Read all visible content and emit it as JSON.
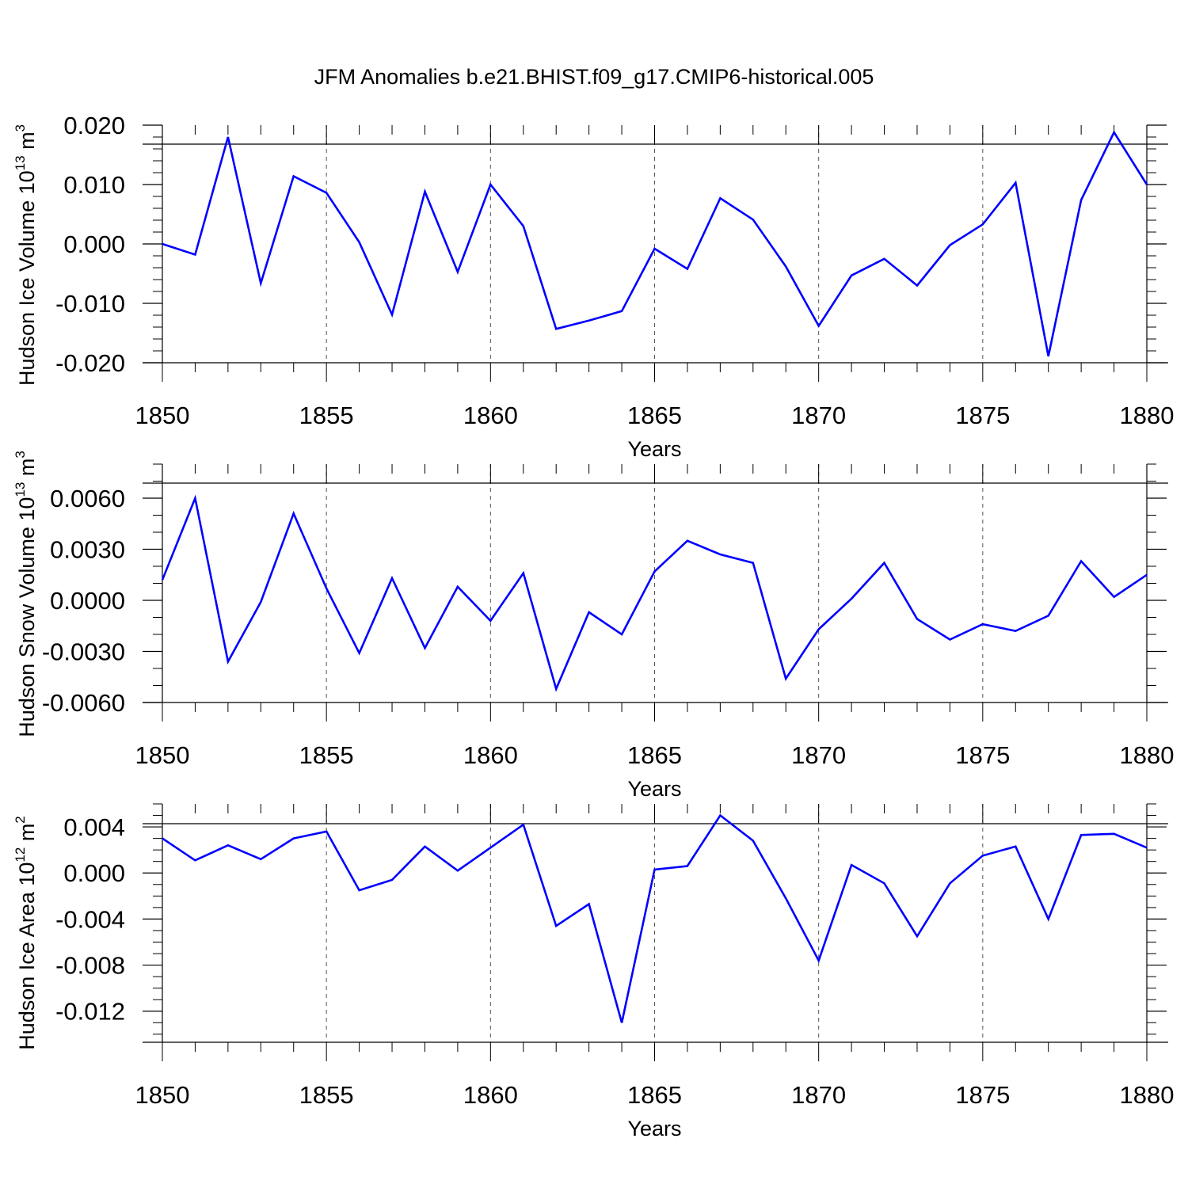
{
  "title": "JFM Anomalies b.e21.BHIST.f09_g17.CMIP6-historical.005",
  "line_color": "#0000ff",
  "chart_data": [
    {
      "type": "line",
      "xlabel": "Years",
      "ylabel": {
        "text": "Hudson Ice Volume 10",
        "sup": "13",
        "unit": " m",
        "unit_sup": "3"
      },
      "xlim": [
        1850,
        1880
      ],
      "ylim": [
        -0.02,
        0.02
      ],
      "xticks": [
        1850,
        1855,
        1860,
        1865,
        1870,
        1875,
        1880
      ],
      "xtick_labels": [
        "1850",
        "1855",
        "1860",
        "1865",
        "1870",
        "1875",
        "1880"
      ],
      "yticks": [
        0.02,
        0.01,
        0.0,
        -0.01,
        -0.02
      ],
      "ytick_labels": [
        "0.020",
        "0.010",
        "0.000",
        "-0.010",
        "-0.020"
      ],
      "y_minor_step": 0.002,
      "series": [
        {
          "x": [
            1850,
            1851,
            1852,
            1853,
            1854,
            1855,
            1856,
            1857,
            1858,
            1859,
            1860,
            1861,
            1862,
            1863,
            1864,
            1865,
            1866,
            1867,
            1868,
            1869,
            1870,
            1871,
            1872,
            1873,
            1874,
            1875,
            1876,
            1877,
            1878,
            1879,
            1880
          ],
          "values": [
            0.0,
            -0.0018,
            0.018,
            -0.0066,
            0.0114,
            0.0086,
            0.0003,
            -0.0119,
            0.0088,
            -0.0047,
            0.01,
            0.003,
            -0.0143,
            -0.0129,
            -0.0113,
            -0.0008,
            -0.0042,
            0.0077,
            0.0041,
            -0.0038,
            -0.0138,
            -0.0053,
            -0.0025,
            -0.007,
            -0.0002,
            0.0033,
            0.0103,
            -0.0189,
            0.0074,
            0.0188,
            0.01
          ]
        }
      ]
    },
    {
      "type": "line",
      "xlabel": "Years",
      "ylabel": {
        "text": "Hudson Snow Volume 10",
        "sup": "13",
        "unit": " m",
        "unit_sup": "3"
      },
      "xlim": [
        1850,
        1880
      ],
      "ylim": [
        -0.006,
        0.008
      ],
      "xticks": [
        1850,
        1855,
        1860,
        1865,
        1870,
        1875,
        1880
      ],
      "xtick_labels": [
        "1850",
        "1855",
        "1860",
        "1865",
        "1870",
        "1875",
        "1880"
      ],
      "yticks": [
        0.006,
        0.003,
        0.0,
        -0.003,
        -0.006
      ],
      "ytick_labels": [
        "0.0060",
        "0.0030",
        "0.0000",
        "-0.0030",
        "-0.0060"
      ],
      "y_minor_step": 0.001,
      "series": [
        {
          "x": [
            1850,
            1851,
            1852,
            1853,
            1854,
            1855,
            1856,
            1857,
            1858,
            1859,
            1860,
            1861,
            1862,
            1863,
            1864,
            1865,
            1866,
            1867,
            1868,
            1869,
            1870,
            1871,
            1872,
            1873,
            1874,
            1875,
            1876,
            1877,
            1878,
            1879,
            1880
          ],
          "values": [
            0.0012,
            0.006,
            -0.0036,
            -0.0001,
            0.0051,
            0.0007,
            -0.0031,
            0.0013,
            -0.0028,
            0.0008,
            -0.0012,
            0.0016,
            -0.0052,
            -0.0007,
            -0.002,
            0.0017,
            0.0035,
            0.0027,
            0.0022,
            -0.0046,
            -0.0017,
            0.0001,
            0.0022,
            -0.0011,
            -0.0023,
            -0.0014,
            -0.0018,
            -0.0009,
            0.0023,
            0.0002,
            0.0015
          ]
        }
      ]
    },
    {
      "type": "line",
      "xlabel": "Years",
      "ylabel": {
        "text": "Hudson Ice Area 10",
        "sup": "12",
        "unit": " m",
        "unit_sup": "2"
      },
      "xlim": [
        1850,
        1880
      ],
      "ylim": [
        -0.0147,
        0.006
      ],
      "xticks": [
        1850,
        1855,
        1860,
        1865,
        1870,
        1875,
        1880
      ],
      "xtick_labels": [
        "1850",
        "1855",
        "1860",
        "1865",
        "1870",
        "1875",
        "1880"
      ],
      "yticks": [
        0.004,
        0.0,
        -0.004,
        -0.008,
        -0.012
      ],
      "ytick_labels": [
        "0.004",
        "0.000",
        "-0.004",
        "-0.008",
        "-0.012"
      ],
      "y_minor_step": 0.001,
      "series": [
        {
          "x": [
            1850,
            1851,
            1852,
            1853,
            1854,
            1855,
            1856,
            1857,
            1858,
            1859,
            1860,
            1861,
            1862,
            1863,
            1864,
            1865,
            1866,
            1867,
            1868,
            1869,
            1870,
            1871,
            1872,
            1873,
            1874,
            1875,
            1876,
            1877,
            1878,
            1879,
            1880
          ],
          "values": [
            0.003,
            0.0011,
            0.0024,
            0.0012,
            0.003,
            0.0036,
            -0.0015,
            -0.0006,
            0.0023,
            0.0002,
            0.0022,
            0.0042,
            -0.0046,
            -0.0027,
            -0.013,
            0.0003,
            0.0006,
            0.005,
            0.0028,
            -0.0022,
            -0.0076,
            0.0007,
            -0.0009,
            -0.0055,
            -0.0009,
            0.0015,
            0.0023,
            -0.004,
            0.0033,
            0.0034,
            0.0022
          ]
        }
      ]
    }
  ]
}
